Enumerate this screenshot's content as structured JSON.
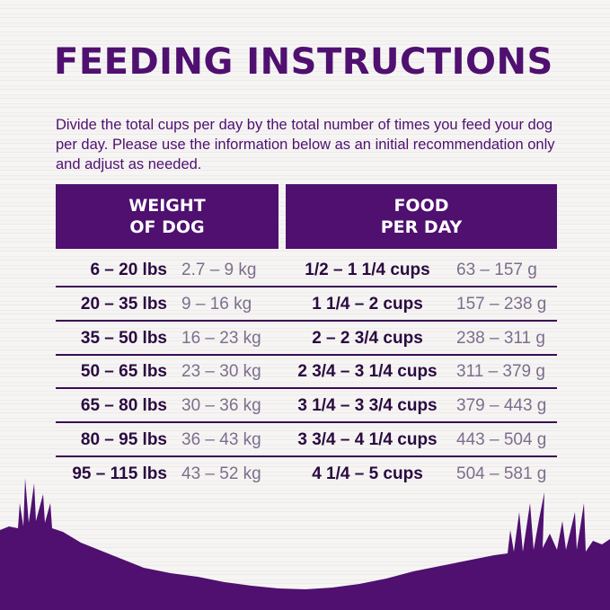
{
  "title": "FEEDING INSTRUCTIONS",
  "intro": "Divide the total cups per day by the total number of times you feed your dog per day. Please use the information below as an initial recommendation only and adjust as needed.",
  "headers": {
    "weight": "WEIGHT\nOF DOG",
    "food": "FOOD\nPER DAY"
  },
  "colors": {
    "brand": "#4f1070",
    "text_dark": "#2a0a40",
    "text_light": "#7d6e8c"
  },
  "rows": [
    {
      "lbs": "6 – 20 lbs",
      "kg": "2.7 – 9 kg",
      "cups": "1/2 – 1 1/4 cups",
      "g": "63 – 157 g"
    },
    {
      "lbs": "20 – 35 lbs",
      "kg": "9 – 16 kg",
      "cups": "1 1/4 – 2 cups",
      "g": "157 – 238 g"
    },
    {
      "lbs": "35 – 50 lbs",
      "kg": "16 – 23 kg",
      "cups": "2 – 2 3/4 cups",
      "g": "238 – 311 g"
    },
    {
      "lbs": "50 – 65 lbs",
      "kg": "23 – 30 kg",
      "cups": "2 3/4 – 3 1/4 cups",
      "g": "311 – 379 g"
    },
    {
      "lbs": "65 – 80 lbs",
      "kg": "30 – 36 kg",
      "cups": "3 1/4 – 3 3/4 cups",
      "g": "379 – 443 g"
    },
    {
      "lbs": "80 – 95 lbs",
      "kg": "36 – 43 kg",
      "cups": "3 3/4 – 4 1/4 cups",
      "g": "443 – 504 g"
    },
    {
      "lbs": "95 – 115 lbs",
      "kg": "43 – 52 kg",
      "cups": "4 1/4 – 5 cups",
      "g": "504 – 581 g"
    }
  ]
}
